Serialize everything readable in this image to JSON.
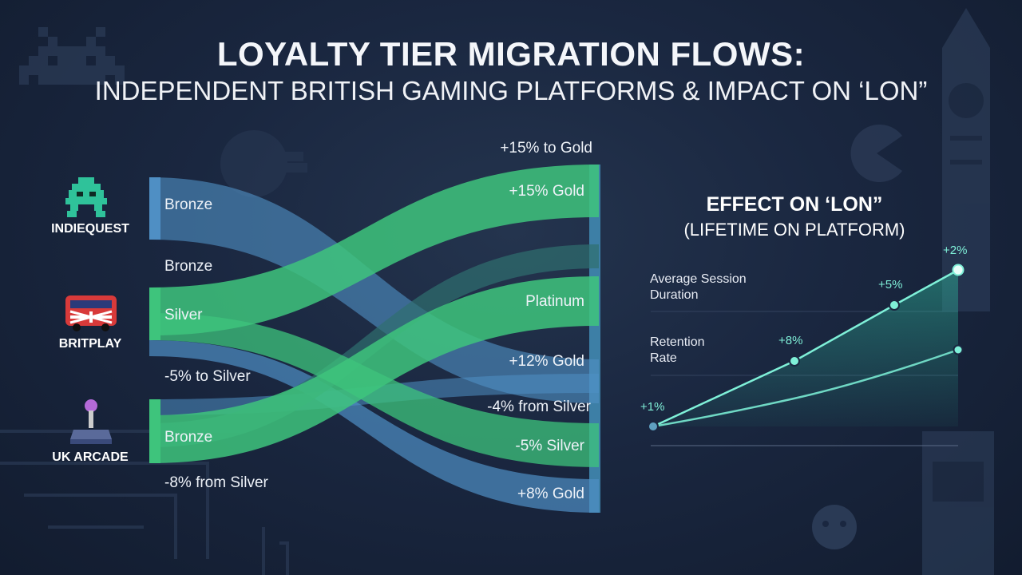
{
  "title": {
    "line1": "LOYALTY TIER MIGRATION FLOWS:",
    "line2": "INDEPENDENT BRITISH GAMING PLATFORMS & IMPACT ON ‘LON”"
  },
  "platforms": [
    {
      "name": "INDIEQUEST",
      "icon": "space-invader-icon"
    },
    {
      "name": "BRITPLAY",
      "icon": "union-jack-bus-icon"
    },
    {
      "name": "UK ARCADE",
      "icon": "joystick-icon"
    }
  ],
  "sankey": {
    "source_labels": [
      "Bronze",
      "Bronze",
      "Silver",
      "-5% to Silver",
      "Bronze",
      "-8% from Silver"
    ],
    "target_labels": [
      "+15% to Gold",
      "+15% Gold",
      "Platinum",
      "+12% Gold",
      "-4% from Silver",
      "-5% Silver",
      "+8% Gold"
    ]
  },
  "effect": {
    "title": "EFFECT ON ‘LON”",
    "subtitle": "(LIFETIME ON PLATFORM)",
    "series_labels": {
      "session": "Average Session Duration",
      "retention": "Retention Rate"
    },
    "point_labels": [
      "+1%",
      "+8%",
      "+5%",
      "+2%"
    ]
  },
  "colors": {
    "background": "#1a2740",
    "green": "#3ec47c",
    "blue": "#4f8fc4",
    "teal_line": "#7ff0d8"
  },
  "chart_data": {
    "type": "line",
    "title": "EFFECT ON ‘LON”",
    "subtitle": "(LIFETIME ON PLATFORM)",
    "series": [
      {
        "name": "Average Session Duration",
        "values": [
          1,
          8,
          5,
          2
        ],
        "labels": [
          "+1%",
          "+8%",
          "+5%",
          "+2%"
        ]
      },
      {
        "name": "Retention Rate",
        "values": null
      }
    ],
    "xlabel": "",
    "ylabel": "",
    "grid": true
  }
}
